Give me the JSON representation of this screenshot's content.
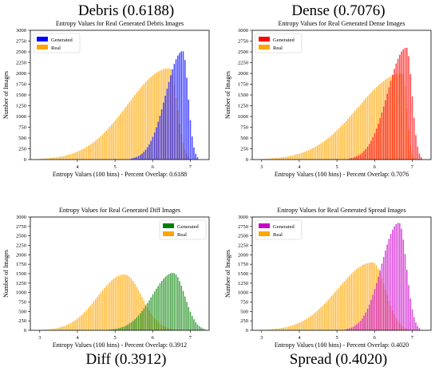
{
  "panels": [
    {
      "heading": "Debris (0.6188)"
    },
    {
      "heading": "Dense (0.7076)"
    },
    {
      "heading": "Diff (0.3912)"
    },
    {
      "heading": "Spread (0.4020)"
    }
  ],
  "chart_data": [
    {
      "type": "bar",
      "title": "Entropy Values for Real Generated Debris Images",
      "xlabel": "Entropy Values (100 bins) -  Percent Overlap: 0.6188",
      "ylabel": "Number of Images",
      "xlim": [
        2.75,
        7.5
      ],
      "ylim": [
        0,
        3000
      ],
      "xticks": [
        4,
        5,
        6,
        7
      ],
      "yticks": [
        0,
        250,
        500,
        750,
        1000,
        1250,
        1500,
        1750,
        2000,
        2250,
        2500,
        2750,
        3000
      ],
      "legend": "top-left",
      "series": [
        {
          "name": "Generated",
          "color": "#0000ff",
          "peak_x": 6.8,
          "peak_y": 2520,
          "range_x": [
            5.4,
            7.2
          ]
        },
        {
          "name": "Real",
          "color": "#ffa500",
          "peak_x": 6.45,
          "peak_y": 2120,
          "range_x": [
            3.0,
            7.0
          ]
        }
      ]
    },
    {
      "type": "bar",
      "title": "Entropy Values for Real Generated Dense Images",
      "xlabel": "Entropy Values (100 bins) -  Percent Overlap: 0.7076",
      "ylabel": "Number of Images",
      "xlim": [
        2.75,
        7.5
      ],
      "ylim": [
        0,
        3000
      ],
      "xticks": [
        3,
        4,
        5,
        6,
        7
      ],
      "yticks": [
        0,
        250,
        500,
        750,
        1000,
        1250,
        1500,
        1750,
        2000,
        2250,
        2500,
        2750,
        3000
      ],
      "legend": "top-left",
      "series": [
        {
          "name": "Generated",
          "color": "#ff0000",
          "peak_x": 6.85,
          "peak_y": 2600,
          "range_x": [
            5.3,
            7.25
          ]
        },
        {
          "name": "Real",
          "color": "#ffa500",
          "peak_x": 6.75,
          "peak_y": 2000,
          "range_x": [
            3.05,
            7.05
          ]
        }
      ]
    },
    {
      "type": "bar",
      "title": "Entropy Values for Real Generated Diff Images",
      "xlabel": "Entropy Values (100 bins) -  Percent Overlap: 0.3912",
      "ylabel": "Number of Images",
      "xlim": [
        2.75,
        7.5
      ],
      "ylim": [
        0,
        3000
      ],
      "xticks": [
        3,
        4,
        5,
        6,
        7
      ],
      "yticks": [
        0,
        250,
        500,
        750,
        1000,
        1250,
        1500,
        1750,
        2000,
        2250,
        2500,
        2750,
        3000
      ],
      "legend": "top-right",
      "series": [
        {
          "name": "Generated",
          "color": "#008000",
          "peak_x": 6.55,
          "peak_y": 1520,
          "range_x": [
            4.8,
            7.4
          ]
        },
        {
          "name": "Real",
          "color": "#ffa500",
          "peak_x": 5.25,
          "peak_y": 1480,
          "range_x": [
            3.05,
            6.55
          ]
        }
      ]
    },
    {
      "type": "bar",
      "title": "Entropy Values for Real Generated Spread Images",
      "xlabel": "Entropy Values (100 bins) -  Percent Overlap: 0.4020",
      "ylabel": "Number of Images",
      "xlim": [
        2.75,
        7.5
      ],
      "ylim": [
        0,
        3000
      ],
      "xticks": [
        3,
        4,
        5,
        6,
        7
      ],
      "yticks": [
        0,
        250,
        500,
        750,
        1000,
        1250,
        1500,
        1750,
        2000,
        2250,
        2500,
        2750,
        3000
      ],
      "legend": "top-left",
      "series": [
        {
          "name": "Generated",
          "color": "#cc00cc",
          "peak_x": 6.65,
          "peak_y": 2850,
          "range_x": [
            5.2,
            7.2
          ]
        },
        {
          "name": "Real",
          "color": "#ffa500",
          "peak_x": 5.95,
          "peak_y": 1800,
          "range_x": [
            3.05,
            6.9
          ]
        }
      ]
    }
  ]
}
